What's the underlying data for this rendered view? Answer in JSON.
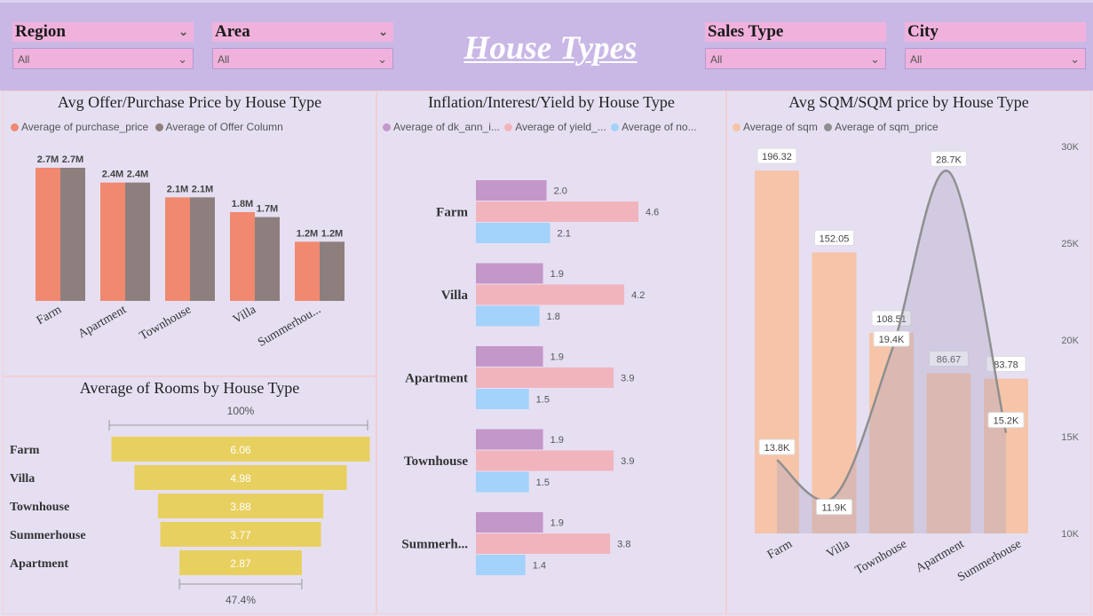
{
  "header": {
    "title": "House Types",
    "slicers": [
      {
        "label": "Region",
        "value": "All"
      },
      {
        "label": "Area",
        "value": "All"
      },
      {
        "label": "Sales Type",
        "value": "All"
      },
      {
        "label": "City",
        "value": "All"
      }
    ]
  },
  "colors": {
    "header_bg": "#c9b8e6",
    "slicer_bg": "#f0b2dc",
    "page_bg": "#e6dff2",
    "purchase": "#f0896f",
    "offer": "#8c7f7d",
    "inflation": "#c497c9",
    "yield": "#f1b4bd",
    "interest": "#a3d2fa",
    "rooms": "#e8d060",
    "sqm": "#f7c3a4",
    "sqm_price_line": "#8f8f8f"
  },
  "charts": {
    "price": {
      "title": "Avg Offer/Purchase Price by House Type",
      "legend": [
        "Average of purchase_price",
        "Average of Offer Column"
      ]
    },
    "rooms": {
      "title": "Average of Rooms by House Type",
      "top_pct": "100%",
      "bottom_pct": "47.4%"
    },
    "inflation": {
      "title": "Inflation/Interest/Yield by House Type",
      "legend": [
        "Average of dk_ann_i...",
        "Average of yield_...",
        "Average of no..."
      ]
    },
    "sqm": {
      "title": "Avg SQM/SQM price by House Type",
      "legend": [
        "Average of sqm",
        "Average of sqm_price"
      ],
      "y2_ticks": [
        "30K",
        "25K",
        "20K",
        "15K",
        "10K"
      ]
    }
  },
  "chart_data": [
    {
      "type": "bar",
      "title": "Avg Offer/Purchase Price by House Type",
      "categories": [
        "Farm",
        "Apartment",
        "Townhouse",
        "Villa",
        "Summerhou..."
      ],
      "series": [
        {
          "name": "Average of purchase_price",
          "values": [
            2.7,
            2.4,
            2.1,
            1.8,
            1.2
          ],
          "labels": [
            "2.7M",
            "2.4M",
            "2.1M",
            "1.8M",
            "1.2M"
          ]
        },
        {
          "name": "Average of Offer Column",
          "values": [
            2.7,
            2.4,
            2.1,
            1.7,
            1.2
          ],
          "labels": [
            "2.7M",
            "2.4M",
            "2.1M",
            "1.7M",
            "1.2M"
          ]
        }
      ],
      "unit": "M"
    },
    {
      "type": "bar",
      "title": "Average of Rooms by House Type",
      "categories": [
        "Farm",
        "Villa",
        "Townhouse",
        "Summerhouse",
        "Apartment"
      ],
      "values": [
        6.06,
        4.98,
        3.88,
        3.77,
        2.87
      ],
      "labels": [
        "6.06",
        "4.98",
        "3.88",
        "3.77",
        "2.87"
      ]
    },
    {
      "type": "bar",
      "title": "Inflation/Interest/Yield by House Type",
      "categories": [
        "Farm",
        "Villa",
        "Apartment",
        "Townhouse",
        "Summerh..."
      ],
      "series": [
        {
          "name": "Average of dk_ann_i...",
          "values": [
            2.0,
            1.9,
            1.9,
            1.9,
            1.9
          ],
          "labels": [
            "2.0",
            "1.9",
            "1.9",
            "1.9",
            "1.9"
          ]
        },
        {
          "name": "Average of yield_...",
          "values": [
            4.6,
            4.2,
            3.9,
            3.9,
            3.8
          ],
          "labels": [
            "4.6",
            "4.2",
            "3.9",
            "3.9",
            "3.8"
          ]
        },
        {
          "name": "Average of no...",
          "values": [
            2.1,
            1.8,
            1.5,
            1.5,
            1.4
          ],
          "labels": [
            "2.1",
            "1.8",
            "1.5",
            "1.5",
            "1.4"
          ]
        }
      ]
    },
    {
      "type": "bar",
      "title": "Avg SQM/SQM price by House Type",
      "categories": [
        "Farm",
        "Villa",
        "Townhouse",
        "Apartment",
        "Summerhouse"
      ],
      "series": [
        {
          "name": "Average of sqm",
          "values": [
            196.32,
            152.05,
            108.51,
            86.67,
            83.78
          ],
          "labels": [
            "196.32",
            "152.05",
            "108.51",
            "86.67",
            "83.78"
          ]
        },
        {
          "name": "Average of sqm_price",
          "values": [
            13.8,
            11.9,
            19.4,
            28.7,
            15.2
          ],
          "labels": [
            "13.8K",
            "11.9K",
            "19.4K",
            "28.7K",
            "15.2K"
          ]
        }
      ],
      "y2lim": [
        10,
        30
      ],
      "y2_unit": "K"
    }
  ]
}
